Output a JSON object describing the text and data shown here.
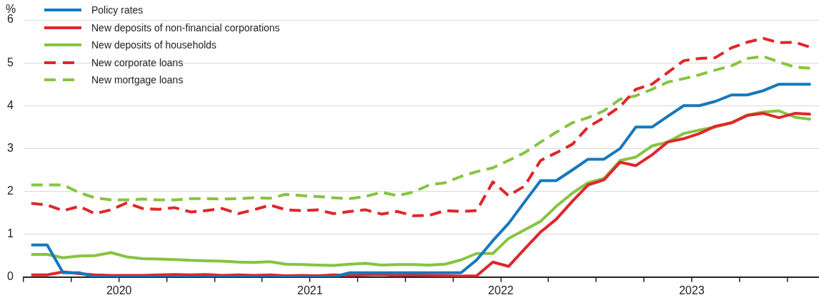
{
  "chart_data": {
    "type": "line",
    "ylabel": "%",
    "legend": "top left",
    "grid": "y",
    "marker": "none",
    "x": [
      "2020-01-16",
      "2020-02-15",
      "2020-03-16",
      "2020-04-16",
      "2020-05-16",
      "2020-06-16",
      "2020-07-16",
      "2020-08-16",
      "2020-09-16",
      "2020-10-16",
      "2020-11-16",
      "2020-12-16",
      "2021-01-16",
      "2021-02-15",
      "2021-03-16",
      "2021-04-16",
      "2021-05-16",
      "2021-06-16",
      "2021-07-16",
      "2021-08-16",
      "2021-09-16",
      "2021-10-16",
      "2021-11-16",
      "2021-12-16",
      "2022-01-16",
      "2022-02-15",
      "2022-03-16",
      "2022-04-16",
      "2022-05-16",
      "2022-06-16",
      "2022-07-16",
      "2022-08-16",
      "2022-09-16",
      "2022-10-16",
      "2022-11-16",
      "2022-12-16",
      "2023-01-16",
      "2023-02-15",
      "2023-03-16",
      "2023-04-16",
      "2023-05-16",
      "2023-06-16",
      "2023-07-16",
      "2023-08-16",
      "2023-09-16",
      "2023-10-16",
      "2023-11-16",
      "2023-12-16",
      "2024-01-16",
      "2024-02-15"
    ],
    "xlim": [
      "2020-01-01",
      "2024-03-01"
    ],
    "xticks": [
      {
        "value": "2020-01-01",
        "label": null
      },
      {
        "value": "2020-04-01",
        "label": null
      },
      {
        "value": "2020-07-01",
        "label": "2020"
      },
      {
        "value": "2020-10-01",
        "label": null
      },
      {
        "value": "2021-01-01",
        "label": null
      },
      {
        "value": "2021-04-01",
        "label": null
      },
      {
        "value": "2021-07-01",
        "label": "2021"
      },
      {
        "value": "2021-10-01",
        "label": null
      },
      {
        "value": "2022-01-01",
        "label": null
      },
      {
        "value": "2022-04-01",
        "label": null
      },
      {
        "value": "2022-07-01",
        "label": "2022"
      },
      {
        "value": "2022-10-01",
        "label": null
      },
      {
        "value": "2023-01-01",
        "label": null
      },
      {
        "value": "2023-04-01",
        "label": null
      },
      {
        "value": "2023-07-01",
        "label": "2023"
      },
      {
        "value": "2023-10-01",
        "label": null
      },
      {
        "value": "2024-01-01",
        "label": null
      }
    ],
    "ylim": [
      0,
      6
    ],
    "yticks": [
      0,
      1,
      2,
      3,
      4,
      5,
      6
    ],
    "series": [
      {
        "name": "Policy rates",
        "color": "#1479bd",
        "line_style": "solid",
        "values": [
          0.75,
          0.75,
          0.1,
          0.1,
          0.0,
          0.0,
          0.0,
          0.0,
          0.0,
          0.0,
          0.0,
          0.0,
          0.0,
          0.0,
          0.0,
          0.0,
          0.0,
          0.0,
          0.0,
          0.0,
          0.1,
          0.1,
          0.1,
          0.1,
          0.1,
          0.1,
          0.1,
          0.1,
          0.4,
          0.85,
          1.25,
          1.75,
          2.25,
          2.25,
          2.5,
          2.75,
          2.75,
          3.0,
          3.5,
          3.5,
          3.75,
          4.0,
          4.0,
          4.1,
          4.25,
          4.25,
          4.35,
          4.5,
          4.5,
          4.5
        ]
      },
      {
        "name": "New deposits of non-financial corporations",
        "color": "#e0262b",
        "line_style": "solid",
        "values": [
          0.05,
          0.05,
          0.12,
          0.08,
          0.05,
          0.04,
          0.04,
          0.04,
          0.05,
          0.06,
          0.05,
          0.06,
          0.04,
          0.05,
          0.04,
          0.05,
          0.03,
          0.04,
          0.03,
          0.05,
          0.04,
          0.05,
          0.06,
          0.04,
          0.05,
          0.04,
          0.03,
          0.02,
          0.03,
          0.35,
          0.25,
          0.65,
          1.05,
          1.35,
          1.77,
          2.15,
          2.27,
          2.68,
          2.6,
          2.85,
          3.15,
          3.23,
          3.35,
          3.52,
          3.6,
          3.77,
          3.82,
          3.72,
          3.82,
          3.8
        ]
      },
      {
        "name": "New deposits of households",
        "color": "#86c440",
        "line_style": "solid",
        "values": [
          0.53,
          0.53,
          0.45,
          0.49,
          0.5,
          0.57,
          0.47,
          0.43,
          0.42,
          0.41,
          0.39,
          0.38,
          0.37,
          0.35,
          0.34,
          0.36,
          0.3,
          0.29,
          0.28,
          0.27,
          0.3,
          0.32,
          0.28,
          0.29,
          0.29,
          0.28,
          0.3,
          0.4,
          0.55,
          0.55,
          0.9,
          1.1,
          1.3,
          1.65,
          1.96,
          2.2,
          2.3,
          2.72,
          2.8,
          3.06,
          3.15,
          3.35,
          3.43,
          3.5,
          3.6,
          3.78,
          3.85,
          3.88,
          3.73,
          3.68
        ]
      },
      {
        "name": "New corporate loans",
        "color": "#e0262b",
        "line_style": "dashed",
        "values": [
          1.72,
          1.68,
          1.55,
          1.65,
          1.48,
          1.57,
          1.73,
          1.6,
          1.58,
          1.62,
          1.52,
          1.55,
          1.6,
          1.48,
          1.57,
          1.68,
          1.57,
          1.55,
          1.57,
          1.48,
          1.53,
          1.57,
          1.47,
          1.53,
          1.43,
          1.44,
          1.55,
          1.53,
          1.55,
          2.22,
          1.9,
          2.12,
          2.72,
          2.9,
          3.1,
          3.5,
          3.72,
          3.98,
          4.38,
          4.5,
          4.77,
          5.05,
          5.1,
          5.12,
          5.35,
          5.48,
          5.57,
          5.47,
          5.48,
          5.36
        ]
      },
      {
        "name": "New mortgage loans",
        "color": "#86c440",
        "line_style": "dashed",
        "values": [
          2.15,
          2.15,
          2.15,
          1.97,
          1.85,
          1.8,
          1.8,
          1.82,
          1.8,
          1.8,
          1.83,
          1.83,
          1.82,
          1.83,
          1.85,
          1.84,
          1.93,
          1.9,
          1.88,
          1.85,
          1.83,
          1.88,
          1.98,
          1.9,
          1.98,
          2.15,
          2.2,
          2.35,
          2.46,
          2.55,
          2.72,
          2.9,
          3.15,
          3.38,
          3.6,
          3.72,
          3.88,
          4.15,
          4.23,
          4.38,
          4.55,
          4.63,
          4.72,
          4.83,
          4.93,
          5.1,
          5.15,
          5.02,
          4.9,
          4.87
        ]
      }
    ]
  }
}
